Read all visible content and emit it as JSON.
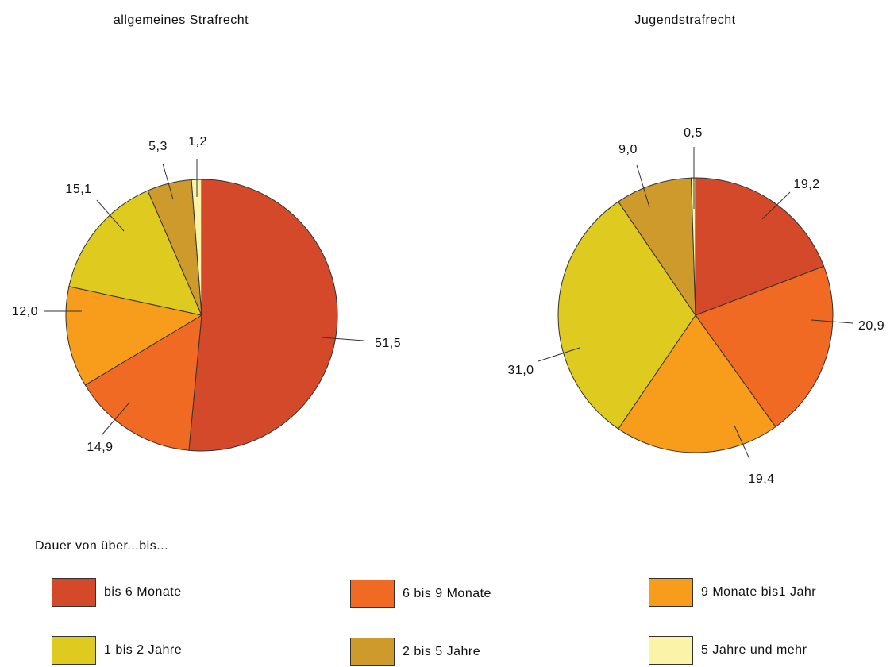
{
  "chart_data": [
    {
      "type": "pie",
      "title": "allgemeines Strafrecht",
      "slices": [
        {
          "category": "bis 6 Monate",
          "value": 51.5,
          "label": "51,5"
        },
        {
          "category": "6 bis 9 Monate",
          "value": 14.9,
          "label": "14,9"
        },
        {
          "category": "9 Monate bis1 Jahr",
          "value": 12.0,
          "label": "12,0"
        },
        {
          "category": "1 bis 2 Jahre",
          "value": 15.1,
          "label": "15,1"
        },
        {
          "category": "2 bis 5 Jahre",
          "value": 5.3,
          "label": "5,3"
        },
        {
          "category": "5 Jahre und mehr",
          "value": 1.2,
          "label": "1,2"
        }
      ]
    },
    {
      "type": "pie",
      "title": "Jugendstrafrecht",
      "slices": [
        {
          "category": "bis 6 Monate",
          "value": 19.2,
          "label": "19,2"
        },
        {
          "category": "6 bis 9 Monate",
          "value": 20.9,
          "label": "20,9"
        },
        {
          "category": "9 Monate bis1 Jahr",
          "value": 19.4,
          "label": "19,4"
        },
        {
          "category": "1 bis 2 Jahre",
          "value": 31.0,
          "label": "31,0"
        },
        {
          "category": "2 bis 5 Jahre",
          "value": 9.0,
          "label": "9,0"
        },
        {
          "category": "5 Jahre und mehr",
          "value": 0.5,
          "label": "0,5"
        }
      ]
    }
  ],
  "legend": {
    "title": "Dauer von über...bis...",
    "items": [
      {
        "label": "bis 6 Monate",
        "color": "#d4492a"
      },
      {
        "label": "6 bis 9 Monate",
        "color": "#f06a24"
      },
      {
        "label": "9 Monate bis1 Jahr",
        "color": "#f89c1c"
      },
      {
        "label": "1 bis 2 Jahre",
        "color": "#dfca20"
      },
      {
        "label": "2 bis 5 Jahre",
        "color": "#cf9a2c"
      },
      {
        "label": "5 Jahre und mehr",
        "color": "#fbf3a8"
      }
    ]
  }
}
